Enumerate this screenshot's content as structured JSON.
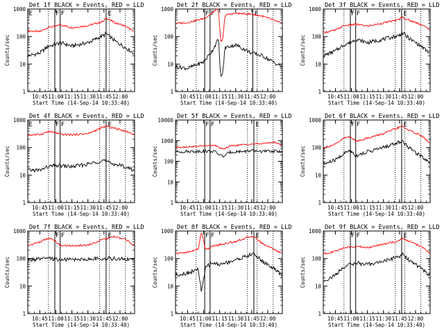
{
  "colors": {
    "events": "#000000",
    "lld": "#ff0000",
    "axes": "#000000",
    "markers": "#000000"
  },
  "chart_data": [
    {
      "type": "line",
      "title": "Det 1f  BLACK = Events, RED = LLD",
      "xlabel": "Start Time (14-Sep-14 10:33:40)",
      "ylabel": "Counts/sec",
      "y_scale": "log",
      "ylim": [
        1,
        1000
      ],
      "xlim": [
        "10:33:40",
        "12:13:40"
      ],
      "x_ticks": [
        "10:45",
        "11:00",
        "11:15",
        "11:30",
        "11:45",
        "12:00"
      ],
      "y_ticks": [
        "1",
        "10",
        "100",
        "1000"
      ],
      "dotted_lines": [
        "10:53",
        "11:41",
        "11:50",
        "12:05"
      ],
      "solid_lines": [
        "10:59",
        "11:04",
        "11:47"
      ],
      "markers": [
        {
          "label": "E",
          "at": "10:34"
        },
        {
          "label": "F",
          "at": "10:59"
        },
        {
          "label": "F",
          "at": "11:04"
        },
        {
          "label": "E",
          "at": "11:48"
        }
      ],
      "series": [
        {
          "key": "lld",
          "x": [
            "10:34",
            "10:45",
            "10:53",
            "10:59",
            "11:04",
            "11:15",
            "11:30",
            "11:45",
            "11:47",
            "11:55",
            "12:05",
            "12:13"
          ],
          "values": [
            160,
            150,
            220,
            230,
            270,
            210,
            250,
            360,
            480,
            320,
            240,
            150
          ]
        },
        {
          "key": "events",
          "x": [
            "10:34",
            "10:45",
            "10:53",
            "10:59",
            "11:04",
            "11:15",
            "11:30",
            "11:45",
            "11:47",
            "11:55",
            "12:05",
            "12:13"
          ],
          "values": [
            20,
            25,
            45,
            50,
            60,
            45,
            60,
            110,
            130,
            70,
            40,
            25
          ]
        }
      ]
    },
    {
      "type": "line",
      "title": "Det 2f  BLACK = Events, RED = LLD",
      "xlabel": "Start Time (14-Sep-14 10:33:40)",
      "ylabel": "Counts/sec",
      "y_scale": "log",
      "ylim": [
        1,
        1000
      ],
      "xlim": [
        "10:33:40",
        "12:13:40"
      ],
      "x_ticks": [
        "10:45",
        "11:00",
        "11:15",
        "11:30",
        "11:45",
        "12:00"
      ],
      "y_ticks": [
        "1",
        "10",
        "100",
        "1000"
      ],
      "dotted_lines": [
        "10:53",
        "11:41",
        "11:50",
        "12:05"
      ],
      "solid_lines": [
        "11:01",
        "11:06",
        "11:46"
      ],
      "markers": [
        {
          "label": "F",
          "at": "11:01"
        },
        {
          "label": "F",
          "at": "11:06"
        },
        {
          "label": "E",
          "at": "11:47"
        }
      ],
      "series": [
        {
          "key": "lld",
          "x": [
            "10:34",
            "10:45",
            "11:00",
            "11:08",
            "11:12",
            "11:14",
            "11:16",
            "11:18",
            "11:20",
            "11:30",
            "11:45",
            "11:55",
            "12:05",
            "12:13"
          ],
          "values": [
            300,
            320,
            450,
            700,
            1000,
            900,
            60,
            80,
            600,
            700,
            650,
            550,
            400,
            300
          ]
        },
        {
          "key": "events",
          "x": [
            "10:34",
            "10:45",
            "11:00",
            "11:08",
            "11:12",
            "11:14",
            "11:16",
            "11:18",
            "11:20",
            "11:30",
            "11:45",
            "11:55",
            "12:05",
            "12:13"
          ],
          "values": [
            8,
            7,
            12,
            30,
            60,
            80,
            3,
            5,
            40,
            50,
            25,
            20,
            12,
            8
          ]
        }
      ]
    },
    {
      "type": "line",
      "title": "Det 3f  BLACK = Events, RED = LLD",
      "xlabel": "Start Time (14-Sep-14 10:33:40)",
      "ylabel": "Counts/sec",
      "y_scale": "log",
      "ylim": [
        1,
        1000
      ],
      "xlim": [
        "10:33:40",
        "12:13:40"
      ],
      "x_ticks": [
        "10:45",
        "11:00",
        "11:15",
        "11:30",
        "11:45",
        "12:00"
      ],
      "y_ticks": [
        "1",
        "10",
        "100",
        "1000"
      ],
      "dotted_lines": [
        "10:53",
        "11:41",
        "11:50",
        "12:05"
      ],
      "solid_lines": [
        "10:59",
        "11:04",
        "11:47"
      ],
      "markers": [
        {
          "label": "F",
          "at": "10:59"
        },
        {
          "label": "F",
          "at": "11:04"
        },
        {
          "label": "E",
          "at": "11:48"
        }
      ],
      "series": [
        {
          "key": "lld",
          "x": [
            "10:34",
            "10:45",
            "10:53",
            "10:59",
            "11:04",
            "11:15",
            "11:30",
            "11:45",
            "11:47",
            "11:55",
            "12:05",
            "12:13"
          ],
          "values": [
            140,
            170,
            250,
            260,
            280,
            240,
            310,
            420,
            520,
            380,
            280,
            180
          ]
        },
        {
          "key": "events",
          "x": [
            "10:34",
            "10:45",
            "10:53",
            "10:59",
            "11:04",
            "11:15",
            "11:30",
            "11:45",
            "11:47",
            "11:55",
            "12:05",
            "12:13"
          ],
          "values": [
            20,
            30,
            50,
            60,
            80,
            60,
            80,
            110,
            140,
            80,
            45,
            25
          ]
        }
      ]
    },
    {
      "type": "line",
      "title": "Det 4f  BLACK = Events, RED = LLD",
      "xlabel": "Start Time (14-Sep-14 10:33:40)",
      "ylabel": "Counts/sec",
      "y_scale": "log",
      "ylim": [
        1,
        1000
      ],
      "xlim": [
        "10:33:40",
        "12:13:40"
      ],
      "x_ticks": [
        "10:45",
        "11:00",
        "11:15",
        "11:30",
        "11:45",
        "12:00"
      ],
      "y_ticks": [
        "1",
        "10",
        "100",
        "1000"
      ],
      "dotted_lines": [
        "10:53",
        "11:41",
        "11:50",
        "12:05"
      ],
      "solid_lines": [
        "10:59",
        "11:04",
        "11:47"
      ],
      "markers": [
        {
          "label": "E",
          "at": "10:34"
        },
        {
          "label": "F",
          "at": "10:59"
        },
        {
          "label": "F",
          "at": "11:04"
        },
        {
          "label": "E",
          "at": "11:48"
        }
      ],
      "series": [
        {
          "key": "lld",
          "x": [
            "10:34",
            "10:45",
            "10:53",
            "10:59",
            "11:04",
            "11:15",
            "11:30",
            "11:45",
            "11:47",
            "11:55",
            "12:05",
            "12:13"
          ],
          "values": [
            280,
            300,
            380,
            350,
            300,
            290,
            320,
            560,
            600,
            500,
            400,
            300
          ]
        },
        {
          "key": "events",
          "x": [
            "10:34",
            "10:45",
            "10:53",
            "10:59",
            "11:04",
            "11:15",
            "11:30",
            "11:45",
            "11:47",
            "11:55",
            "12:05",
            "12:13"
          ],
          "values": [
            15,
            15,
            20,
            22,
            22,
            20,
            25,
            35,
            30,
            25,
            20,
            15
          ]
        }
      ]
    },
    {
      "type": "line",
      "title": "Det 5f  BLACK = Events, RED = LLD",
      "xlabel": "Start Time (14-Sep-14 10:33:40)",
      "ylabel": "Counts/sec",
      "y_scale": "log",
      "ylim": [
        1,
        10000
      ],
      "xlim": [
        "10:33:40",
        "12:13:40"
      ],
      "x_ticks": [
        "10:45",
        "11:00",
        "11:15",
        "11:30",
        "11:45",
        "12:00"
      ],
      "y_ticks": [
        "1",
        "10",
        "100",
        "1000",
        "10000"
      ],
      "dotted_lines": [
        "10:53",
        "11:41",
        "11:50",
        "12:05"
      ],
      "solid_lines": [
        "11:01",
        "11:06",
        "11:47"
      ],
      "markers": [
        {
          "label": "F",
          "at": "11:01"
        },
        {
          "label": "F",
          "at": "11:06"
        },
        {
          "label": "E",
          "at": "11:48"
        }
      ],
      "series": [
        {
          "key": "lld",
          "x": [
            "10:34",
            "10:45",
            "11:00",
            "11:10",
            "11:18",
            "11:25",
            "11:35",
            "11:45",
            "11:55",
            "12:05",
            "12:13"
          ],
          "values": [
            480,
            500,
            560,
            600,
            380,
            560,
            620,
            680,
            720,
            850,
            650
          ]
        },
        {
          "key": "events",
          "x": [
            "10:34",
            "10:45",
            "11:00",
            "11:10",
            "11:18",
            "11:25",
            "11:35",
            "11:45",
            "11:55",
            "12:05",
            "12:13"
          ],
          "values": [
            290,
            300,
            310,
            300,
            170,
            280,
            300,
            320,
            300,
            310,
            300
          ]
        }
      ]
    },
    {
      "type": "line",
      "title": "Det 6f  BLACK = Events, RED = LLD",
      "xlabel": "Start Time (14-Sep-14 10:33:40)",
      "ylabel": "Counts/sec",
      "y_scale": "log",
      "ylim": [
        1,
        1000
      ],
      "xlim": [
        "10:33:40",
        "12:13:40"
      ],
      "x_ticks": [
        "10:45",
        "11:00",
        "11:15",
        "11:30",
        "11:45",
        "12:00"
      ],
      "y_ticks": [
        "1",
        "10",
        "100",
        "1000"
      ],
      "dotted_lines": [
        "10:53",
        "11:41",
        "11:50",
        "12:05"
      ],
      "solid_lines": [
        "10:59",
        "11:04",
        "11:47"
      ],
      "markers": [
        {
          "label": "F",
          "at": "10:59"
        },
        {
          "label": "F",
          "at": "11:04"
        },
        {
          "label": "E",
          "at": "11:48"
        }
      ],
      "series": [
        {
          "key": "lld",
          "x": [
            "10:34",
            "10:45",
            "10:53",
            "10:59",
            "11:04",
            "11:15",
            "11:30",
            "11:45",
            "11:47",
            "11:55",
            "12:05",
            "12:13"
          ],
          "values": [
            100,
            130,
            220,
            250,
            170,
            220,
            320,
            550,
            600,
            400,
            280,
            150
          ]
        },
        {
          "key": "events",
          "x": [
            "10:34",
            "10:45",
            "10:53",
            "10:59",
            "11:04",
            "11:15",
            "11:30",
            "11:45",
            "11:47",
            "11:55",
            "12:05",
            "12:13"
          ],
          "values": [
            25,
            35,
            60,
            80,
            50,
            70,
            100,
            160,
            180,
            90,
            50,
            30
          ]
        }
      ]
    },
    {
      "type": "line",
      "title": "Det 7f  BLACK = Events, RED = LLD",
      "xlabel": "Start Time (14-Sep-14 10:33:40)",
      "ylabel": "Counts/sec",
      "y_scale": "log",
      "ylim": [
        1,
        1000
      ],
      "xlim": [
        "10:33:40",
        "12:13:40"
      ],
      "x_ticks": [
        "10:45",
        "11:00",
        "11:15",
        "11:30",
        "11:45",
        "12:00"
      ],
      "y_ticks": [
        "1",
        "10",
        "100",
        "1000"
      ],
      "dotted_lines": [
        "10:53",
        "11:41",
        "11:50",
        "12:05"
      ],
      "solid_lines": [
        "10:59",
        "11:04",
        "11:47"
      ],
      "markers": [
        {
          "label": "F",
          "at": "10:59"
        },
        {
          "label": "F",
          "at": "11:04"
        },
        {
          "label": "E",
          "at": "11:48"
        }
      ],
      "series": [
        {
          "key": "lld",
          "x": [
            "10:34",
            "10:45",
            "10:53",
            "10:59",
            "11:04",
            "11:15",
            "11:30",
            "11:45",
            "11:55",
            "12:05",
            "12:13"
          ],
          "values": [
            300,
            400,
            550,
            450,
            300,
            290,
            310,
            500,
            620,
            500,
            310
          ]
        },
        {
          "key": "events",
          "x": [
            "10:34",
            "10:45",
            "10:53",
            "10:59",
            "11:04",
            "11:15",
            "11:30",
            "11:45",
            "11:55",
            "12:05",
            "12:13"
          ],
          "values": [
            90,
            95,
            100,
            95,
            90,
            92,
            95,
            100,
            100,
            95,
            90
          ]
        }
      ]
    },
    {
      "type": "line",
      "title": "Det 8f  BLACK = Events, RED = LLD",
      "xlabel": "Start Time (14-Sep-14 10:33:40)",
      "ylabel": "Counts/sec",
      "y_scale": "log",
      "ylim": [
        1,
        1000
      ],
      "xlim": [
        "10:33:40",
        "12:13:40"
      ],
      "x_ticks": [
        "10:45",
        "11:00",
        "11:15",
        "11:30",
        "11:45",
        "12:00"
      ],
      "y_ticks": [
        "1",
        "10",
        "100",
        "1000"
      ],
      "dotted_lines": [
        "10:53",
        "11:41",
        "11:50",
        "12:05"
      ],
      "solid_lines": [
        "11:01",
        "11:06",
        "11:47"
      ],
      "markers": [
        {
          "label": "F",
          "at": "11:01"
        },
        {
          "label": "F",
          "at": "11:06"
        },
        {
          "label": "E",
          "at": "11:48"
        }
      ],
      "series": [
        {
          "key": "lld",
          "x": [
            "10:34",
            "10:45",
            "10:55",
            "10:58",
            "11:02",
            "11:08",
            "11:15",
            "11:30",
            "11:45",
            "11:47",
            "11:55",
            "12:05",
            "12:13"
          ],
          "values": [
            150,
            170,
            220,
            1000,
            200,
            280,
            320,
            420,
            650,
            620,
            350,
            230,
            150
          ]
        },
        {
          "key": "events",
          "x": [
            "10:34",
            "10:45",
            "10:55",
            "10:58",
            "11:02",
            "11:08",
            "11:15",
            "11:30",
            "11:45",
            "11:47",
            "11:55",
            "12:05",
            "12:13"
          ],
          "values": [
            25,
            30,
            40,
            6,
            50,
            70,
            60,
            90,
            140,
            150,
            80,
            45,
            25
          ]
        }
      ]
    },
    {
      "type": "line",
      "title": "Det 9f  BLACK = Events, RED = LLD",
      "xlabel": "Start Time (14-Sep-14 10:33:40)",
      "ylabel": "Counts/sec",
      "y_scale": "log",
      "ylim": [
        1,
        1000
      ],
      "xlim": [
        "10:33:40",
        "12:13:40"
      ],
      "x_ticks": [
        "10:45",
        "11:00",
        "11:15",
        "11:30",
        "11:45",
        "12:00"
      ],
      "y_ticks": [
        "1",
        "10",
        "100",
        "1000"
      ],
      "dotted_lines": [
        "10:53",
        "11:41",
        "11:50",
        "12:05"
      ],
      "solid_lines": [
        "10:59",
        "11:04",
        "11:47"
      ],
      "markers": [
        {
          "label": "F",
          "at": "10:59"
        },
        {
          "label": "F",
          "at": "11:04"
        },
        {
          "label": "E",
          "at": "11:48"
        }
      ],
      "series": [
        {
          "key": "lld",
          "x": [
            "10:34",
            "10:45",
            "10:53",
            "10:59",
            "11:04",
            "11:15",
            "11:30",
            "11:45",
            "11:47",
            "11:55",
            "12:05",
            "12:13"
          ],
          "values": [
            150,
            180,
            250,
            260,
            280,
            250,
            330,
            450,
            550,
            400,
            280,
            160
          ]
        },
        {
          "key": "events",
          "x": [
            "10:34",
            "10:45",
            "10:53",
            "10:59",
            "11:04",
            "11:15",
            "11:30",
            "11:45",
            "11:47",
            "11:55",
            "12:05",
            "12:13"
          ],
          "values": [
            15,
            25,
            50,
            60,
            70,
            60,
            80,
            120,
            150,
            80,
            45,
            25
          ]
        }
      ]
    }
  ]
}
